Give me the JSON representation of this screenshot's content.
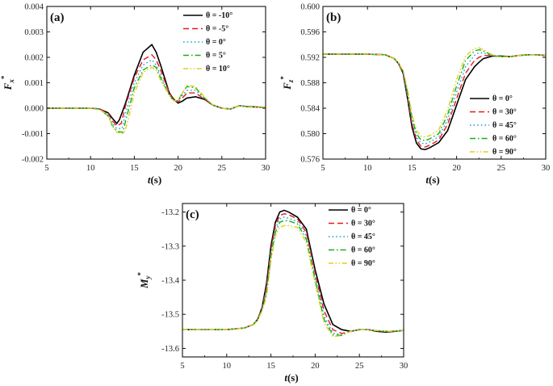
{
  "colors": {
    "s0": "#000000",
    "s1": "#e8181b",
    "s2": "#17a2d6",
    "s3": "#16b01a",
    "s4": "#e4cf1c"
  },
  "chart_data": [
    {
      "type": "line",
      "panel_label": "(a)",
      "xlabel": "t(s)",
      "ylabel": "Fx*",
      "xlim": [
        5,
        30
      ],
      "ylim": [
        -0.002,
        0.004
      ],
      "xticks": [
        5,
        10,
        15,
        20,
        25,
        30
      ],
      "xtick_labels": [
        "5",
        "10",
        "15",
        "20",
        "25",
        "30"
      ],
      "yticks": [
        -0.002,
        -0.001,
        0.0,
        0.001,
        0.002,
        0.003,
        0.004
      ],
      "ytick_labels": [
        "-0.002",
        "-0.001",
        "0.000",
        "0.001",
        "0.002",
        "0.003",
        "0.004"
      ],
      "legend_position": "top-right",
      "series": [
        {
          "name": "θ = -10°",
          "color_key": "s0",
          "dash": "solid",
          "x": [
            5,
            10,
            11,
            12,
            12.5,
            13,
            13.3,
            14,
            15,
            16,
            17,
            17.5,
            18,
            19,
            19.5,
            20,
            20.5,
            21,
            22,
            23,
            24,
            25,
            26,
            27,
            28,
            30
          ],
          "y": [
            0,
            0,
            -3e-05,
            -0.00018,
            -0.0004,
            -0.0006,
            -0.00045,
            0.0002,
            0.0013,
            0.0022,
            0.0025,
            0.0022,
            0.0017,
            0.0006,
            0.00035,
            0.0002,
            0.00028,
            0.0004,
            0.00045,
            0.00035,
            0.00012,
            0.0,
            -3e-05,
            0.0001,
            6e-05,
            3e-05
          ]
        },
        {
          "name": "θ = -5°",
          "color_key": "s1",
          "dash": "dash",
          "x": [
            5,
            10,
            11,
            12,
            12.5,
            13,
            13.5,
            14,
            15,
            16,
            17,
            17.5,
            18,
            19,
            19.5,
            20,
            20.5,
            21,
            22,
            23,
            24,
            25,
            26,
            27,
            28,
            30
          ],
          "y": [
            0,
            0,
            -3e-05,
            -0.0002,
            -0.0005,
            -0.0007,
            -0.0006,
            0.0001,
            0.0012,
            0.0019,
            0.0021,
            0.0019,
            0.0015,
            0.0006,
            0.0003,
            0.00025,
            0.0004,
            0.0006,
            0.0006,
            0.00035,
            0.00012,
            0.0,
            -3e-05,
            0.0001,
            5e-05,
            3e-05
          ]
        },
        {
          "name": "θ = 0°",
          "color_key": "s2",
          "dash": "dot",
          "x": [
            5,
            10,
            11,
            12,
            12.5,
            13,
            13.6,
            14,
            15,
            16,
            17,
            17.5,
            18,
            19,
            19.5,
            20,
            20.5,
            21,
            22,
            23,
            24,
            25,
            26,
            27,
            28,
            30
          ],
          "y": [
            0,
            0,
            -3e-05,
            -0.00025,
            -0.0006,
            -0.0008,
            -0.0008,
            -0.0002,
            0.001,
            0.0017,
            0.0019,
            0.0017,
            0.0013,
            0.0005,
            0.0003,
            0.0003,
            0.0005,
            0.0007,
            0.0007,
            0.0004,
            0.00012,
            0.0,
            -3e-05,
            0.0001,
            5e-05,
            3e-05
          ]
        },
        {
          "name": "θ = 5°",
          "color_key": "s3",
          "dash": "dashdot",
          "x": [
            5,
            10,
            11,
            12,
            12.5,
            13,
            13.7,
            14,
            15,
            16,
            17,
            17.5,
            18,
            19,
            19.5,
            20,
            20.5,
            21,
            22,
            23,
            24,
            25,
            26,
            27,
            28,
            30
          ],
          "y": [
            0,
            0,
            -4e-05,
            -0.0003,
            -0.0007,
            -0.0009,
            -0.00095,
            -0.0005,
            0.0008,
            0.0015,
            0.0017,
            0.0016,
            0.0012,
            0.0005,
            0.0003,
            0.0003,
            0.0006,
            0.00085,
            0.0008,
            0.0004,
            0.00012,
            0.0,
            -3e-05,
            0.0001,
            5e-05,
            3e-05
          ]
        },
        {
          "name": "θ = 10°",
          "color_key": "s4",
          "dash": "dashdotdot",
          "x": [
            5,
            10,
            11,
            12,
            12.5,
            13,
            13.8,
            14.2,
            15,
            16,
            17,
            17.5,
            18,
            19,
            19.5,
            20,
            20.5,
            21,
            22,
            23,
            24,
            25,
            26,
            27,
            28,
            30
          ],
          "y": [
            0,
            0,
            -4e-05,
            -0.0003,
            -0.0007,
            -0.00095,
            -0.001,
            -0.0006,
            0.0006,
            0.0014,
            0.0016,
            0.0015,
            0.0011,
            0.0005,
            0.0003,
            0.0003,
            0.0006,
            0.0009,
            0.00085,
            0.00045,
            0.00012,
            0.0,
            -3e-05,
            0.0001,
            5e-05,
            3e-05
          ]
        }
      ]
    },
    {
      "type": "line",
      "panel_label": "(b)",
      "xlabel": "t(s)",
      "ylabel": "Fz*",
      "xlim": [
        5,
        30
      ],
      "ylim": [
        0.576,
        0.6
      ],
      "xticks": [
        5,
        10,
        15,
        20,
        25,
        30
      ],
      "xtick_labels": [
        "5",
        "10",
        "15",
        "20",
        "25",
        "30"
      ],
      "yticks": [
        0.576,
        0.58,
        0.584,
        0.588,
        0.592,
        0.596,
        0.6
      ],
      "ytick_labels": [
        "0.576",
        "0.580",
        "0.584",
        "0.588",
        "0.592",
        "0.596",
        "0.600"
      ],
      "legend_position": "bottom-right",
      "series": [
        {
          "name": "θ = 0°",
          "color_key": "s0",
          "dash": "solid",
          "x": [
            5,
            10,
            12,
            13,
            13.5,
            14,
            14.5,
            15,
            15.5,
            16,
            16.5,
            17,
            18,
            19,
            20,
            21,
            22,
            22.5,
            23,
            24,
            25,
            26,
            27,
            28,
            29,
            30
          ],
          "y": [
            0.5925,
            0.5925,
            0.5924,
            0.5918,
            0.591,
            0.5895,
            0.5855,
            0.581,
            0.5785,
            0.5776,
            0.5775,
            0.5778,
            0.5786,
            0.5805,
            0.5845,
            0.5885,
            0.5905,
            0.5912,
            0.5918,
            0.5922,
            0.5922,
            0.5921,
            0.5923,
            0.5924,
            0.5924,
            0.5923
          ]
        },
        {
          "name": "θ = 30°",
          "color_key": "s1",
          "dash": "dash",
          "x": [
            5,
            10,
            12,
            13,
            13.5,
            14,
            14.5,
            15,
            15.5,
            16,
            16.5,
            17,
            18,
            19,
            20,
            21,
            22,
            22.5,
            23,
            24,
            25,
            26,
            27,
            28,
            29,
            30
          ],
          "y": [
            0.5925,
            0.5925,
            0.5924,
            0.5918,
            0.591,
            0.5896,
            0.5858,
            0.5815,
            0.579,
            0.578,
            0.5779,
            0.5782,
            0.579,
            0.5815,
            0.5855,
            0.5895,
            0.5915,
            0.592,
            0.5923,
            0.5923,
            0.5921,
            0.5921,
            0.5923,
            0.5924,
            0.5924,
            0.5923
          ]
        },
        {
          "name": "θ = 45°",
          "color_key": "s2",
          "dash": "dot",
          "x": [
            5,
            10,
            12,
            13,
            13.5,
            14,
            14.5,
            15,
            15.5,
            16,
            16.5,
            17,
            18,
            19,
            20,
            21,
            22,
            22.5,
            23,
            24,
            25,
            26,
            27,
            28,
            29,
            30
          ],
          "y": [
            0.5925,
            0.5925,
            0.5924,
            0.5918,
            0.591,
            0.5897,
            0.586,
            0.582,
            0.5795,
            0.5785,
            0.5784,
            0.5787,
            0.5795,
            0.5822,
            0.5865,
            0.5905,
            0.5923,
            0.5927,
            0.5927,
            0.5923,
            0.5921,
            0.5921,
            0.5923,
            0.5924,
            0.5924,
            0.5923
          ]
        },
        {
          "name": "θ = 60°",
          "color_key": "s3",
          "dash": "dashdot",
          "x": [
            5,
            10,
            12,
            13,
            13.5,
            14,
            14.5,
            15,
            15.5,
            16,
            16.5,
            17,
            18,
            19,
            20,
            21,
            22,
            22.5,
            23,
            24,
            25,
            26,
            27,
            28,
            29,
            30
          ],
          "y": [
            0.5925,
            0.5925,
            0.5924,
            0.5918,
            0.5911,
            0.5898,
            0.5865,
            0.5825,
            0.58,
            0.579,
            0.5789,
            0.5792,
            0.58,
            0.583,
            0.5875,
            0.5915,
            0.593,
            0.5932,
            0.593,
            0.5923,
            0.5921,
            0.5921,
            0.5923,
            0.5924,
            0.5924,
            0.5923
          ]
        },
        {
          "name": "θ = 90°",
          "color_key": "s4",
          "dash": "dashdotdot",
          "x": [
            5,
            10,
            12,
            13,
            13.5,
            14,
            14.5,
            15,
            15.5,
            16,
            16.5,
            17,
            18,
            19,
            20,
            21,
            22,
            22.5,
            23,
            24,
            25,
            26,
            27,
            28,
            29,
            30
          ],
          "y": [
            0.5925,
            0.5925,
            0.5924,
            0.5918,
            0.5911,
            0.5899,
            0.587,
            0.583,
            0.5805,
            0.5796,
            0.5795,
            0.5797,
            0.5806,
            0.5838,
            0.5885,
            0.5922,
            0.5934,
            0.5935,
            0.5932,
            0.5924,
            0.5921,
            0.5921,
            0.5923,
            0.5924,
            0.5924,
            0.5923
          ]
        }
      ]
    },
    {
      "type": "line",
      "panel_label": "(c)",
      "xlabel": "t(s)",
      "ylabel": "My*",
      "xlim": [
        5,
        30
      ],
      "ylim": [
        -13.625,
        -13.175
      ],
      "xticks": [
        5,
        10,
        15,
        20,
        25,
        30
      ],
      "xtick_labels": [
        "5",
        "10",
        "15",
        "20",
        "25",
        "30"
      ],
      "yticks": [
        -13.6,
        -13.5,
        -13.4,
        -13.3,
        -13.2
      ],
      "ytick_labels": [
        "-13.6",
        "-13.5",
        "-13.4",
        "-13.3",
        "-13.2"
      ],
      "legend_position": "top-right",
      "series": [
        {
          "name": "θ = 0°",
          "color_key": "s0",
          "dash": "solid",
          "x": [
            5,
            10,
            12,
            13,
            13.5,
            14,
            14.5,
            15,
            15.5,
            16,
            16.5,
            17,
            18,
            19,
            20,
            21,
            22,
            23,
            24,
            25,
            26,
            27,
            28,
            29,
            30
          ],
          "y": [
            -13.545,
            -13.545,
            -13.54,
            -13.53,
            -13.515,
            -13.48,
            -13.41,
            -13.3,
            -13.23,
            -13.2,
            -13.195,
            -13.2,
            -13.215,
            -13.25,
            -13.37,
            -13.47,
            -13.53,
            -13.545,
            -13.55,
            -13.545,
            -13.545,
            -13.55,
            -13.552,
            -13.55,
            -13.547
          ]
        },
        {
          "name": "θ = 30°",
          "color_key": "s1",
          "dash": "dash",
          "x": [
            5,
            10,
            12,
            13,
            13.5,
            14,
            14.5,
            15,
            15.5,
            16,
            16.5,
            17,
            18,
            19,
            20,
            21,
            22,
            23,
            24,
            25,
            26,
            27,
            28,
            29,
            30
          ],
          "y": [
            -13.545,
            -13.545,
            -13.54,
            -13.53,
            -13.515,
            -13.482,
            -13.42,
            -13.31,
            -13.24,
            -13.21,
            -13.205,
            -13.208,
            -13.22,
            -13.26,
            -13.38,
            -13.49,
            -13.545,
            -13.556,
            -13.55,
            -13.545,
            -13.545,
            -13.548,
            -13.55,
            -13.549,
            -13.547
          ]
        },
        {
          "name": "θ = 45°",
          "color_key": "s2",
          "dash": "dot",
          "x": [
            5,
            10,
            12,
            13,
            13.5,
            14,
            14.5,
            15,
            15.5,
            16,
            16.5,
            17,
            18,
            19,
            20,
            21,
            22,
            23,
            24,
            25,
            26,
            27,
            28,
            29,
            30
          ],
          "y": [
            -13.545,
            -13.545,
            -13.54,
            -13.53,
            -13.516,
            -13.484,
            -13.43,
            -13.32,
            -13.25,
            -13.22,
            -13.215,
            -13.218,
            -13.228,
            -13.27,
            -13.39,
            -13.505,
            -13.555,
            -13.56,
            -13.55,
            -13.545,
            -13.545,
            -13.548,
            -13.55,
            -13.549,
            -13.547
          ]
        },
        {
          "name": "θ = 60°",
          "color_key": "s3",
          "dash": "dashdot",
          "x": [
            5,
            10,
            12,
            13,
            13.5,
            14,
            14.5,
            15,
            15.5,
            16,
            16.5,
            17,
            18,
            19,
            20,
            21,
            22,
            23,
            24,
            25,
            26,
            27,
            28,
            29,
            30
          ],
          "y": [
            -13.545,
            -13.545,
            -13.54,
            -13.53,
            -13.517,
            -13.486,
            -13.44,
            -13.33,
            -13.26,
            -13.23,
            -13.225,
            -13.226,
            -13.235,
            -13.28,
            -13.4,
            -13.515,
            -13.56,
            -13.562,
            -13.55,
            -13.545,
            -13.545,
            -13.548,
            -13.55,
            -13.549,
            -13.547
          ]
        },
        {
          "name": "θ = 90°",
          "color_key": "s4",
          "dash": "dashdotdot",
          "x": [
            5,
            10,
            12,
            13,
            13.5,
            14,
            14.5,
            15,
            15.5,
            16,
            16.5,
            17,
            18,
            19,
            20,
            21,
            22,
            23,
            24,
            25,
            26,
            27,
            28,
            29,
            30
          ],
          "y": [
            -13.545,
            -13.545,
            -13.54,
            -13.53,
            -13.518,
            -13.49,
            -13.45,
            -13.345,
            -13.27,
            -13.245,
            -13.24,
            -13.24,
            -13.245,
            -13.29,
            -13.41,
            -13.525,
            -13.565,
            -13.563,
            -13.55,
            -13.545,
            -13.545,
            -13.548,
            -13.55,
            -13.549,
            -13.547
          ]
        }
      ]
    }
  ]
}
